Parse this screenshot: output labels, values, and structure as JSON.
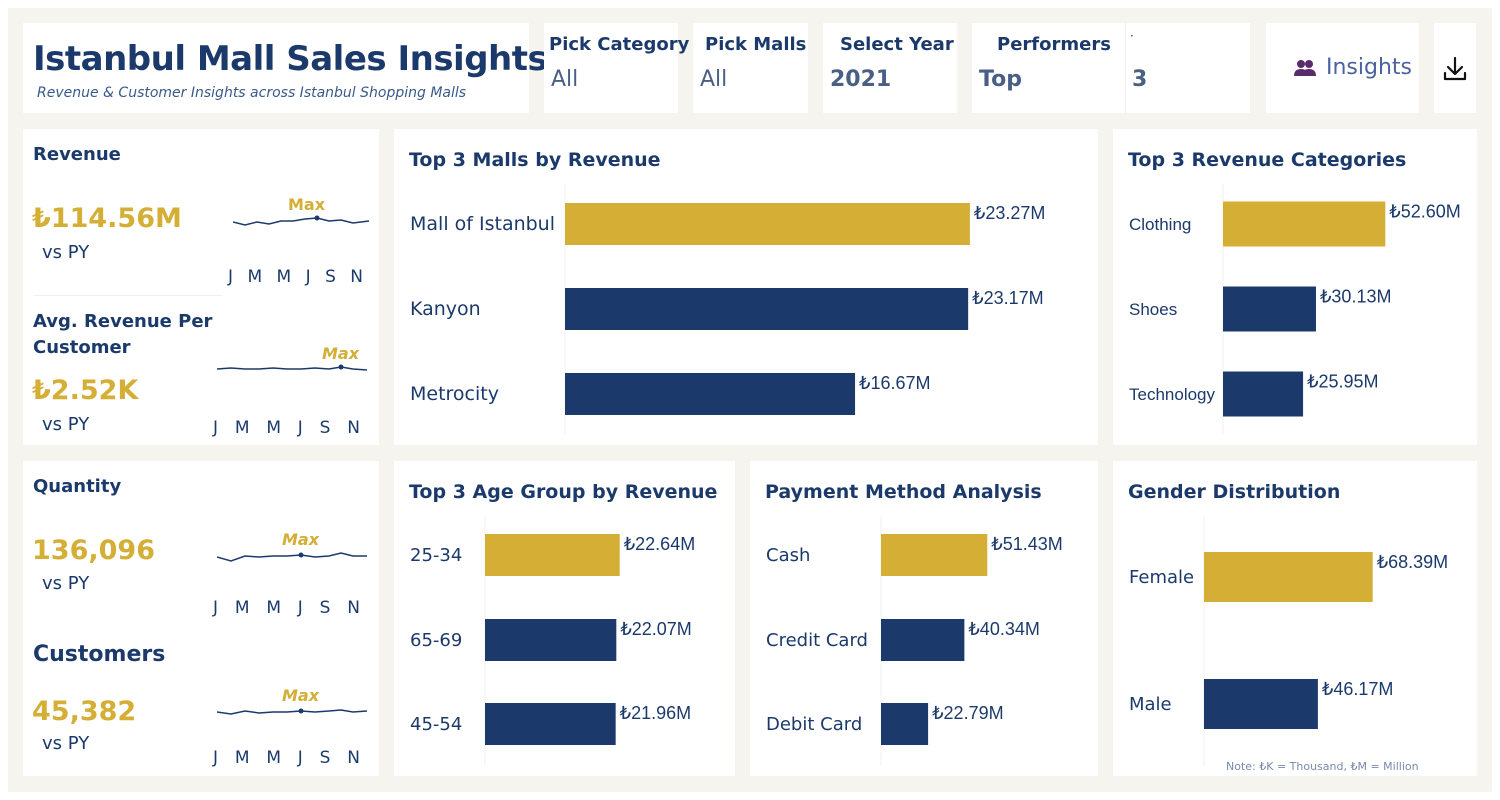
{
  "header": {
    "title": "Istanbul Mall Sales Insights",
    "subtitle": "Revenue & Customer Insights across Istanbul Shopping Malls"
  },
  "filters": {
    "category": {
      "label": "Pick Category",
      "value": "All"
    },
    "malls": {
      "label": "Pick Malls",
      "value": "All"
    },
    "year": {
      "label": "Select Year",
      "value": "2021"
    },
    "performers": {
      "label": "Performers",
      "value": "Top",
      "count_label": "·",
      "count": "3"
    }
  },
  "actions": {
    "insights_label": "Insights",
    "insights_icon": "people-icon",
    "download_icon": "download-icon"
  },
  "kpis": {
    "revenue": {
      "title": "Revenue",
      "value": "₺114.56M",
      "sub": "vs PY",
      "max_label": "Max",
      "months": [
        "J",
        "M",
        "M",
        "J",
        "S",
        "N"
      ]
    },
    "avg_revenue": {
      "title": "Avg. Revenue Per Customer",
      "value": "₺2.52K",
      "sub": "vs PY",
      "max_label": "Max",
      "months": [
        "J",
        "M",
        "M",
        "J",
        "S",
        "N"
      ]
    },
    "quantity": {
      "title": "Quantity",
      "value": "136,096",
      "sub": "vs PY",
      "max_label": "Max",
      "months": [
        "J",
        "M",
        "M",
        "J",
        "S",
        "N"
      ]
    },
    "customers": {
      "title": "Customers",
      "value": "45,382",
      "sub": "vs PY",
      "max_label": "Max",
      "months": [
        "J",
        "M",
        "M",
        "J",
        "S",
        "N"
      ]
    }
  },
  "colors": {
    "navy": "#1b3a6b",
    "gold": "#d4ae35",
    "background": "#f6f4ee"
  },
  "note": "Note: ₺K = Thousand, ₺M = Million",
  "chart_data": [
    {
      "id": "malls",
      "type": "bar",
      "title": "Top  3 Malls by Revenue",
      "categories": [
        "Mall of Istanbul",
        "Kanyon",
        "Metrocity"
      ],
      "values": [
        23.27,
        23.17,
        16.67
      ],
      "labels": [
        "₺23.27M",
        "₺23.17M",
        "₺16.67M"
      ],
      "highlight": 0,
      "xlim": [
        0,
        25
      ]
    },
    {
      "id": "categories",
      "type": "bar",
      "title": "Top 3 Revenue Categories",
      "categories": [
        "Clothing",
        "Shoes",
        "Technology"
      ],
      "values": [
        52.6,
        30.13,
        25.95
      ],
      "labels": [
        "₺52.60M",
        "₺30.13M",
        "₺25.95M"
      ],
      "highlight": 0,
      "xlim": [
        0,
        70
      ]
    },
    {
      "id": "age",
      "type": "bar",
      "title": "Top  3 Age Group by Revenue",
      "categories": [
        "25-34",
        "65-69",
        "45-54"
      ],
      "values": [
        22.64,
        22.07,
        21.96
      ],
      "labels": [
        "₺22.64M",
        "₺22.07M",
        "₺21.96M"
      ],
      "highlight": 0,
      "xlim": [
        0,
        40
      ]
    },
    {
      "id": "payment",
      "type": "bar",
      "title": "Payment Method Analysis",
      "categories": [
        "Cash",
        "Credit Card",
        "Debit Card"
      ],
      "values": [
        51.43,
        40.34,
        22.79
      ],
      "labels": [
        "₺51.43M",
        "₺40.34M",
        "₺22.79M"
      ],
      "highlight": 0,
      "xlim": [
        0,
        90
      ]
    },
    {
      "id": "gender",
      "type": "bar",
      "title": "Gender Distribution",
      "categories": [
        "Female",
        "Male"
      ],
      "values": [
        68.39,
        46.17
      ],
      "labels": [
        "₺68.39M",
        "₺46.17M"
      ],
      "highlight": 0,
      "xlim": [
        0,
        120
      ]
    }
  ]
}
